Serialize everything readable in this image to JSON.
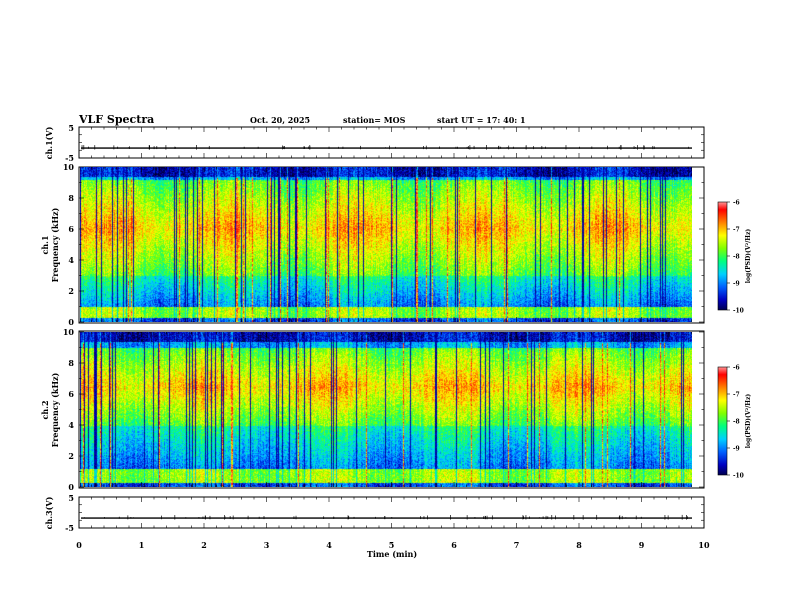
{
  "header": {
    "title": "VLF Spectra",
    "date": "Oct. 20, 2025",
    "station": "station= MOS",
    "start": "start  UT  =    17: 40: 1"
  },
  "chart_data": [
    {
      "type": "line",
      "panel": "waveform-ch1",
      "ylabel": "ch.1(V)",
      "ylim": [
        -5,
        5
      ],
      "yticks": [
        "5",
        "-5"
      ],
      "xlim": [
        0,
        10
      ],
      "baseline": -1.8
    },
    {
      "type": "heatmap",
      "panel": "spectrogram-ch1",
      "ylabel_line1": "ch.1",
      "ylabel_line2": "Frequency (kHz)",
      "ylim": [
        0,
        10
      ],
      "yticks": [
        "0",
        "2",
        "4",
        "6",
        "8",
        "10"
      ],
      "xlim": [
        0,
        9.85
      ],
      "bands_khz": [
        [
          0.3,
          1.0
        ],
        [
          3.0,
          9.2
        ]
      ],
      "colorbar": {
        "label": "log(PSD)(V²/Hz)",
        "range": [
          -10,
          -6
        ],
        "ticks": [
          "-6",
          "-7",
          "-8",
          "-9",
          "-10"
        ]
      }
    },
    {
      "type": "heatmap",
      "panel": "spectrogram-ch2",
      "ylabel_line1": "ch.2",
      "ylabel_line2": "Frequency (kHz)",
      "ylim": [
        0,
        10
      ],
      "yticks": [
        "0",
        "2",
        "4",
        "6",
        "8",
        "10"
      ],
      "xlim": [
        0,
        9.85
      ],
      "bands_khz": [
        [
          0.3,
          1.2
        ],
        [
          4.0,
          9.0
        ]
      ],
      "colorbar": {
        "label": "log(PSD)(V²/Hz)",
        "range": [
          -10,
          -6
        ],
        "ticks": [
          "-6",
          "-7",
          "-8",
          "-9",
          "-10"
        ]
      }
    },
    {
      "type": "line",
      "panel": "waveform-ch3",
      "ylabel": "ch.3(V)",
      "ylim": [
        -5,
        5
      ],
      "yticks": [
        "5",
        "-5"
      ],
      "xlim": [
        0,
        10
      ],
      "baseline": -1.8
    }
  ],
  "x_axis": {
    "label": "Time (min)",
    "ticks": [
      "0",
      "1",
      "2",
      "3",
      "4",
      "5",
      "6",
      "7",
      "8",
      "9",
      "10"
    ],
    "range": [
      0,
      10
    ]
  },
  "colors": {
    "colormap": [
      "#000030",
      "#0000c0",
      "#0060ff",
      "#00d0ff",
      "#00ff80",
      "#80ff00",
      "#ffff00",
      "#ff8000",
      "#ff0000",
      "#ffffff"
    ]
  }
}
